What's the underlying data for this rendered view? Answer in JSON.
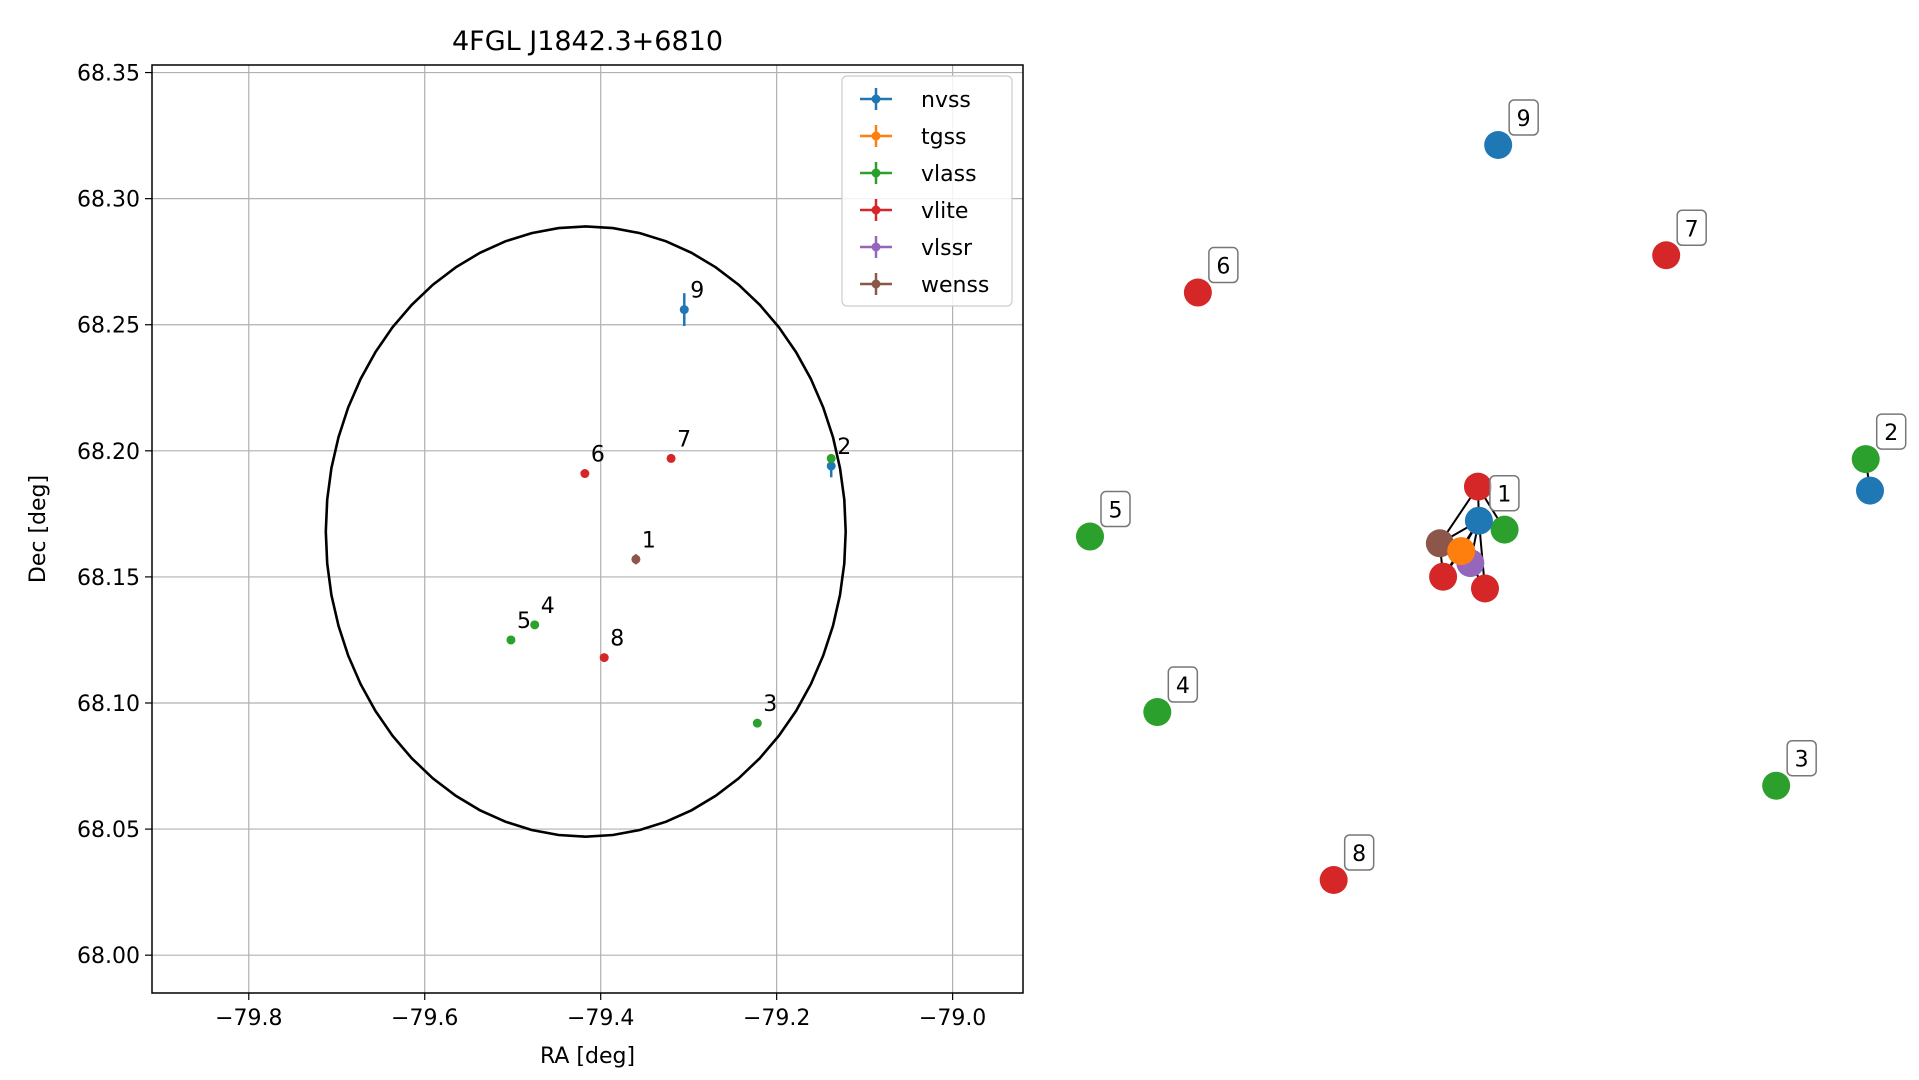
{
  "chart_data": [
    {
      "type": "scatter",
      "title": "4FGL J1842.3+6810",
      "xlabel": "RA [deg]",
      "ylabel": "Dec [deg]",
      "xlim": [
        -79.91,
        -78.92
      ],
      "ylim": [
        67.985,
        68.353
      ],
      "xticks": [
        -79.8,
        -79.6,
        -79.4,
        -79.2,
        -79.0
      ],
      "xtick_labels": [
        "−79.8",
        "−79.6",
        "−79.4",
        "−79.2",
        "−79.0"
      ],
      "yticks": [
        68.0,
        68.05,
        68.1,
        68.15,
        68.2,
        68.25,
        68.3,
        68.35
      ],
      "ytick_labels": [
        "68.00",
        "68.05",
        "68.10",
        "68.15",
        "68.20",
        "68.25",
        "68.30",
        "68.35"
      ],
      "grid": true,
      "legend_position": "top-right",
      "ellipse": {
        "center": [
          -79.417,
          68.168
        ],
        "ra_semi_axis": 0.2955,
        "dec_semi_axis": 0.121,
        "color": "#000000"
      },
      "series": [
        {
          "name": "nvss",
          "color": "#1f77b4"
        },
        {
          "name": "tgss",
          "color": "#ff7f0e"
        },
        {
          "name": "vlass",
          "color": "#2ca02c"
        },
        {
          "name": "vlite",
          "color": "#d62728"
        },
        {
          "name": "vlssr",
          "color": "#9467bd"
        },
        {
          "name": "wenss",
          "color": "#8c564b"
        }
      ],
      "points": [
        {
          "label": "1",
          "series": "wenss",
          "ra": -79.36,
          "dec": 68.157,
          "ra_err": 0.003,
          "dec_err": 0.002
        },
        {
          "label": "2",
          "series": "nvss",
          "ra": -79.138,
          "dec": 68.194,
          "ra_err": 0.002,
          "dec_err": 0.0045
        },
        {
          "label": "",
          "series": "vlass",
          "ra": -79.138,
          "dec": 68.197,
          "ra_err": 0.001,
          "dec_err": 0.001
        },
        {
          "label": "3",
          "series": "vlass",
          "ra": -79.222,
          "dec": 68.092,
          "ra_err": 0.001,
          "dec_err": 0.001
        },
        {
          "label": "4",
          "series": "vlass",
          "ra": -79.475,
          "dec": 68.131,
          "ra_err": 0.001,
          "dec_err": 0.001
        },
        {
          "label": "5",
          "series": "vlass",
          "ra": -79.502,
          "dec": 68.125,
          "ra_err": 0.001,
          "dec_err": 0.001
        },
        {
          "label": "6",
          "series": "vlite",
          "ra": -79.418,
          "dec": 68.191,
          "ra_err": 0.001,
          "dec_err": 0.001
        },
        {
          "label": "7",
          "series": "vlite",
          "ra": -79.32,
          "dec": 68.197,
          "ra_err": 0.001,
          "dec_err": 0.001
        },
        {
          "label": "8",
          "series": "vlite",
          "ra": -79.396,
          "dec": 68.118,
          "ra_err": 0.001,
          "dec_err": 0.001
        },
        {
          "label": "9",
          "series": "nvss",
          "ra": -79.305,
          "dec": 68.256,
          "ra_err": 0.002,
          "dec_err": 0.0065
        }
      ]
    },
    {
      "type": "network",
      "nodes": [
        {
          "id": "n1",
          "label": "1",
          "series": "nvss",
          "pos": [
            0.4986,
            0.5112
          ]
        },
        {
          "id": "c_vlite_top",
          "label": "",
          "series": "vlite",
          "pos": [
            0.4974,
            0.4648
          ]
        },
        {
          "id": "c_vlass",
          "label": "",
          "series": "vlass",
          "pos": [
            0.5315,
            0.5233
          ]
        },
        {
          "id": "c_vlite_bot",
          "label": "",
          "series": "vlite",
          "pos": [
            0.5064,
            0.6034
          ]
        },
        {
          "id": "c_vlssr",
          "label": "",
          "series": "vlssr",
          "pos": [
            0.4876,
            0.5688
          ]
        },
        {
          "id": "c_vlite_left",
          "label": "",
          "series": "vlite",
          "pos": [
            0.4527,
            0.5874
          ]
        },
        {
          "id": "c_wenss",
          "label": "",
          "series": "wenss",
          "pos": [
            0.4485,
            0.5419
          ]
        },
        {
          "id": "c_tgss",
          "label": "",
          "series": "tgss",
          "pos": [
            0.4759,
            0.5525
          ]
        },
        {
          "id": "n2_vlass",
          "label": "2",
          "series": "vlass",
          "pos": [
            0.9945,
            0.4273
          ]
        },
        {
          "id": "n2_nvss",
          "label": "",
          "series": "nvss",
          "pos": [
            1.0,
            0.4702
          ]
        },
        {
          "id": "n3",
          "label": "3",
          "series": "vlass",
          "pos": [
            0.8797,
            0.8717
          ]
        },
        {
          "id": "n4",
          "label": "4",
          "series": "vlass",
          "pos": [
            0.0863,
            0.7715
          ]
        },
        {
          "id": "n5",
          "label": "5",
          "series": "vlass",
          "pos": [
            0.0,
            0.5327
          ]
        },
        {
          "id": "n6",
          "label": "6",
          "series": "vlite",
          "pos": [
            0.1383,
            0.2007
          ]
        },
        {
          "id": "n7",
          "label": "7",
          "series": "vlite",
          "pos": [
            0.7387,
            0.15
          ]
        },
        {
          "id": "n8",
          "label": "8",
          "series": "vlite",
          "pos": [
            0.3124,
            1.0
          ]
        },
        {
          "id": "n9",
          "label": "9",
          "series": "nvss",
          "pos": [
            0.5233,
            0.0
          ]
        }
      ],
      "edges": [
        [
          "n1",
          "c_vlite_top"
        ],
        [
          "n1",
          "c_vlass"
        ],
        [
          "n1",
          "c_vlite_bot"
        ],
        [
          "n1",
          "c_vlssr"
        ],
        [
          "n1",
          "c_vlite_left"
        ],
        [
          "n1",
          "c_wenss"
        ],
        [
          "n1",
          "c_tgss"
        ],
        [
          "c_wenss",
          "c_vlite_top"
        ],
        [
          "c_wenss",
          "c_vlite_left"
        ],
        [
          "c_wenss",
          "c_tgss"
        ],
        [
          "c_tgss",
          "c_vlite_left"
        ],
        [
          "c_vlssr",
          "c_vlite_bot"
        ],
        [
          "c_vlite_top",
          "c_vlass"
        ],
        [
          "n2_vlass",
          "n2_nvss"
        ]
      ]
    }
  ]
}
